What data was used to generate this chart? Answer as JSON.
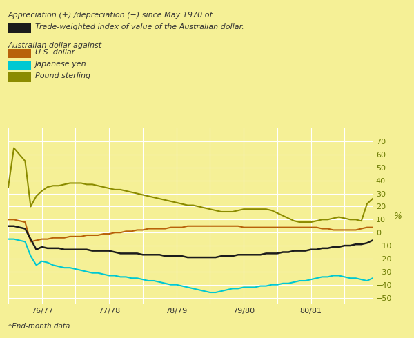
{
  "title_text": "Appreciation (+) /depreciation (−) since May 1970 of:",
  "trade_label": "Trade-weighted index of value of the Australian dollar.",
  "against_label": "Australian dollar against —",
  "legend_items": [
    {
      "label": "Trade-weighted index of value of the Australian dollar.",
      "color": "#1c1c1c"
    },
    {
      "label": "U.S. dollar",
      "color": "#b8620a"
    },
    {
      "label": "Japanese yen",
      "color": "#00c8d2"
    },
    {
      "label": "Pound sterling",
      "color": "#8b8b00"
    }
  ],
  "background_color": "#f5f096",
  "grid_color": "#ffffff",
  "ylabel": "%",
  "ylim": [
    -55,
    80
  ],
  "yticks": [
    -50,
    -40,
    -30,
    -20,
    -10,
    0,
    10,
    20,
    30,
    40,
    50,
    60,
    70
  ],
  "xlabel_note": "*End-month data",
  "xtick_labels": [
    "76/77",
    "77/78",
    "78/79",
    "79/80",
    "80/81"
  ],
  "xtick_positions": [
    6,
    18,
    30,
    42,
    54
  ],
  "n_points": 66,
  "trade_weighted": [
    5,
    5,
    4,
    3,
    -5,
    -13,
    -11,
    -12,
    -12,
    -12,
    -13,
    -13,
    -13,
    -13,
    -13,
    -14,
    -14,
    -14,
    -14,
    -15,
    -16,
    -16,
    -16,
    -16,
    -17,
    -17,
    -17,
    -17,
    -18,
    -18,
    -18,
    -18,
    -19,
    -19,
    -19,
    -19,
    -19,
    -19,
    -18,
    -18,
    -18,
    -17,
    -17,
    -17,
    -17,
    -17,
    -16,
    -16,
    -16,
    -15,
    -15,
    -14,
    -14,
    -14,
    -13,
    -13,
    -12,
    -12,
    -11,
    -11,
    -10,
    -10,
    -9,
    -9,
    -8,
    -6
  ],
  "us_dollar": [
    10,
    10,
    9,
    8,
    -7,
    -6,
    -5,
    -5,
    -4,
    -4,
    -4,
    -3,
    -3,
    -3,
    -2,
    -2,
    -2,
    -1,
    -1,
    0,
    0,
    1,
    1,
    2,
    2,
    3,
    3,
    3,
    3,
    4,
    4,
    4,
    5,
    5,
    5,
    5,
    5,
    5,
    5,
    5,
    5,
    5,
    4,
    4,
    4,
    4,
    4,
    4,
    4,
    4,
    4,
    4,
    4,
    4,
    4,
    4,
    3,
    3,
    2,
    2,
    2,
    2,
    2,
    3,
    4,
    4
  ],
  "japanese_yen": [
    -5,
    -5,
    -6,
    -7,
    -18,
    -25,
    -22,
    -23,
    -25,
    -26,
    -27,
    -27,
    -28,
    -29,
    -30,
    -31,
    -31,
    -32,
    -33,
    -33,
    -34,
    -34,
    -35,
    -35,
    -36,
    -37,
    -37,
    -38,
    -39,
    -40,
    -40,
    -41,
    -42,
    -43,
    -44,
    -45,
    -46,
    -46,
    -45,
    -44,
    -43,
    -43,
    -42,
    -42,
    -42,
    -41,
    -41,
    -40,
    -40,
    -39,
    -39,
    -38,
    -37,
    -37,
    -36,
    -35,
    -34,
    -34,
    -33,
    -33,
    -34,
    -35,
    -35,
    -36,
    -37,
    -35
  ],
  "pound_sterling": [
    35,
    65,
    60,
    55,
    20,
    28,
    32,
    35,
    36,
    36,
    37,
    38,
    38,
    38,
    37,
    37,
    36,
    35,
    34,
    33,
    33,
    32,
    31,
    30,
    29,
    28,
    27,
    26,
    25,
    24,
    23,
    22,
    21,
    21,
    20,
    19,
    18,
    17,
    16,
    16,
    16,
    17,
    18,
    18,
    18,
    18,
    18,
    17,
    15,
    13,
    11,
    9,
    8,
    8,
    8,
    9,
    10,
    10,
    11,
    12,
    11,
    10,
    10,
    9,
    22,
    26
  ]
}
